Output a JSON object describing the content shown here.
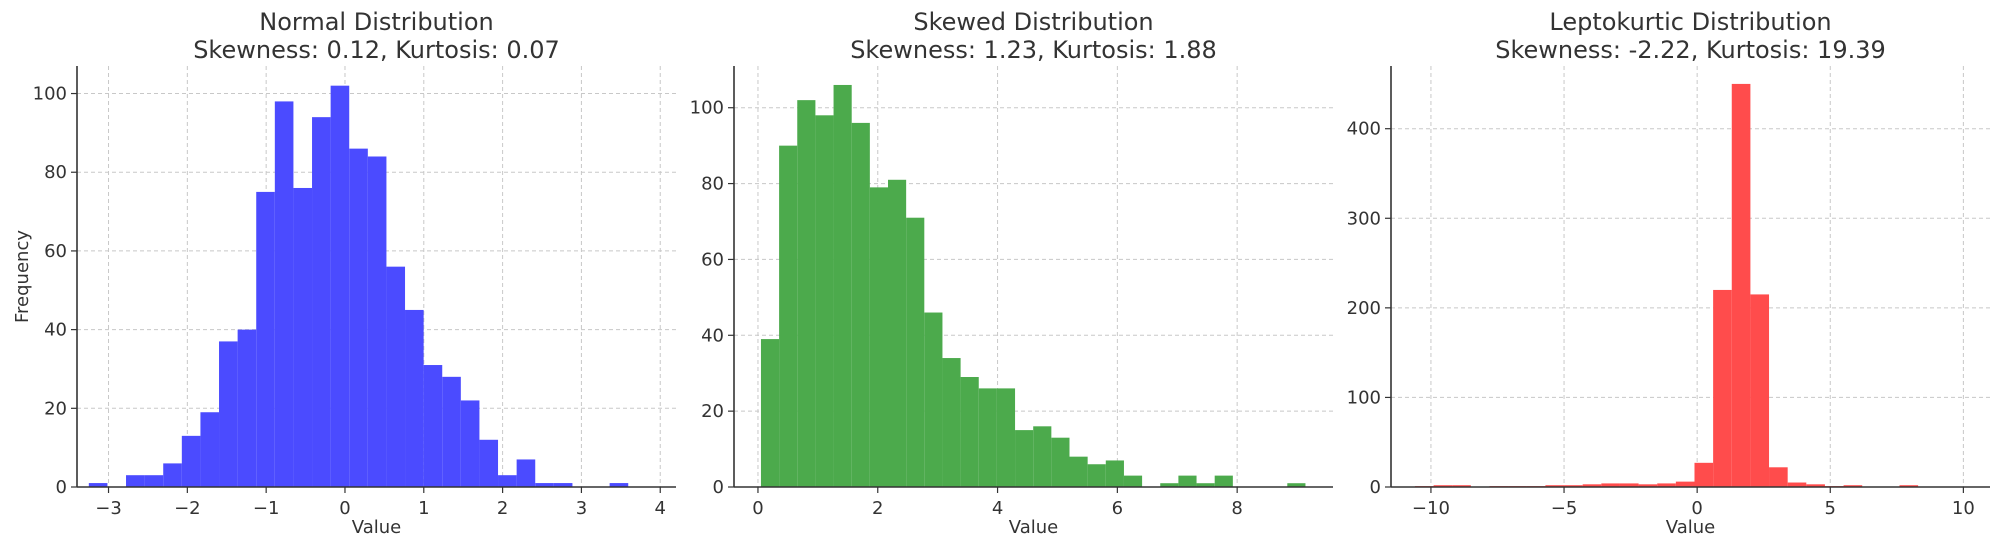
{
  "chart_data": [
    {
      "type": "bar",
      "title": "Normal Distribution",
      "subtitle": "Skewness: 0.12, Kurtosis: 0.07",
      "xlabel": "Value",
      "ylabel": "Frequency",
      "xlim": [
        -3.4,
        4.2
      ],
      "ylim": [
        0,
        107
      ],
      "xticks": [
        -3,
        -2,
        -1,
        0,
        1,
        2,
        3,
        4
      ],
      "xtick_labels": [
        "−3",
        "−2",
        "−1",
        "0",
        "1",
        "2",
        "3",
        "4"
      ],
      "yticks": [
        0,
        20,
        40,
        60,
        80,
        100
      ],
      "ytick_labels": [
        "0",
        "20",
        "40",
        "60",
        "80",
        "100"
      ],
      "grid": true,
      "color": "#4b4bff",
      "bins": {
        "start": -3.25,
        "width": 0.236,
        "values": [
          1,
          0,
          3,
          3,
          6,
          13,
          19,
          37,
          40,
          75,
          98,
          76,
          94,
          102,
          86,
          84,
          56,
          45,
          31,
          28,
          22,
          12,
          3,
          7,
          1,
          1,
          0,
          0,
          1,
          0
        ]
      }
    },
    {
      "type": "bar",
      "title": "Skewed Distribution",
      "subtitle": "Skewness: 1.23, Kurtosis: 1.88",
      "xlabel": "Value",
      "ylabel": "",
      "xlim": [
        -0.4,
        9.6
      ],
      "ylim": [
        0,
        111
      ],
      "xticks": [
        0,
        2,
        4,
        6,
        8
      ],
      "xtick_labels": [
        "0",
        "2",
        "4",
        "6",
        "8"
      ],
      "yticks": [
        0,
        20,
        40,
        60,
        80,
        100
      ],
      "ytick_labels": [
        "0",
        "20",
        "40",
        "60",
        "80",
        "100"
      ],
      "grid": true,
      "color": "#4caa4c",
      "bins": {
        "start": 0.05,
        "width": 0.303,
        "values": [
          39,
          90,
          102,
          98,
          106,
          96,
          79,
          81,
          71,
          46,
          34,
          29,
          26,
          26,
          15,
          16,
          13,
          8,
          6,
          7,
          3,
          0,
          1,
          3,
          1,
          3,
          0,
          0,
          0,
          1
        ]
      }
    },
    {
      "type": "bar",
      "title": "Leptokurtic Distribution",
      "subtitle": "Skewness: -2.22, Kurtosis: 19.39",
      "xlabel": "Value",
      "ylabel": "",
      "xlim": [
        -11.5,
        11.0
      ],
      "ylim": [
        0,
        470
      ],
      "xticks": [
        -10,
        -5,
        0,
        5,
        10
      ],
      "xtick_labels": [
        "−10",
        "−5",
        "0",
        "5",
        "10"
      ],
      "yticks": [
        0,
        100,
        200,
        300,
        400
      ],
      "ytick_labels": [
        "0",
        "100",
        "200",
        "300",
        "400"
      ],
      "grid": true,
      "color": "#ff4c4c",
      "bins": {
        "start": -10.6,
        "width": 0.7,
        "values": [
          1,
          2,
          2,
          0,
          1,
          1,
          1,
          2,
          2,
          3,
          4,
          4,
          3,
          4,
          6,
          27,
          220,
          450,
          215,
          22,
          5,
          3,
          1,
          2,
          0,
          0,
          2,
          0,
          0,
          0
        ]
      }
    }
  ]
}
